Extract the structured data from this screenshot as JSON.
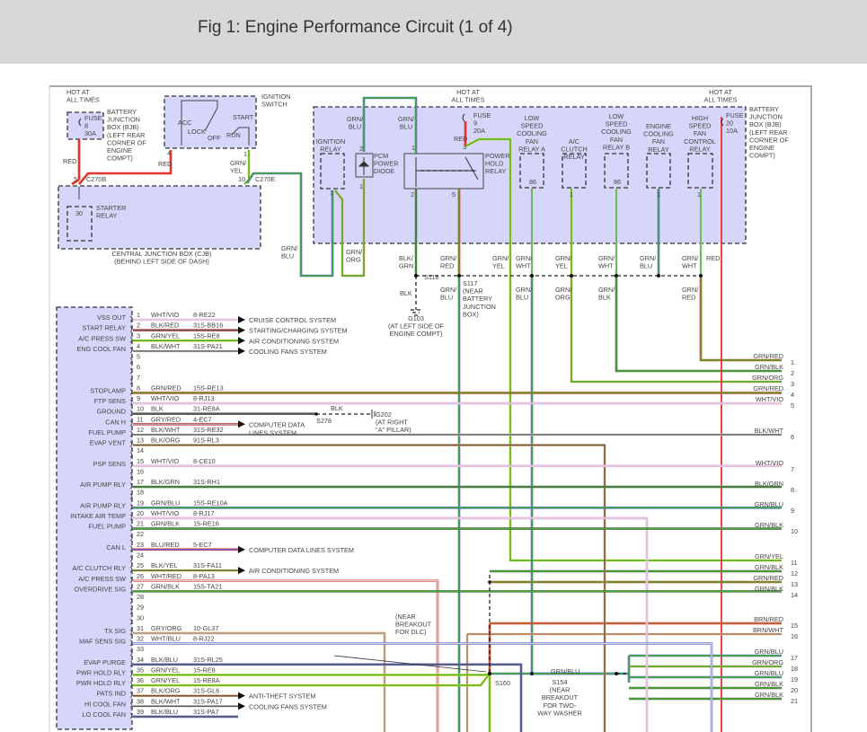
{
  "header": {
    "title": "Fig 1: Engine Performance Circuit (1 of 4)"
  },
  "wire_colors": {
    "GRN": "#3fae2a",
    "RED": "#e8322d",
    "BLK": "#5a5a5a",
    "WHT": "#d8d8d8",
    "VIO": "#ee9ee8",
    "YEL": "#e3dc2a",
    "BLU": "#5a6bd6",
    "ORG": "#e8a45a",
    "GRY": "#a0a0a0",
    "BRN": "#b5713a"
  },
  "labels": {
    "hot1": [
      "HOT AT",
      "ALL TIMES"
    ],
    "fuse8": [
      "FUSE",
      "8",
      "30A"
    ],
    "bjb_left": [
      "BATTERY",
      "JUNCTION",
      "BOX (BJB)",
      "(LEFT REAR",
      "CORNER OF",
      "ENGINE",
      "COMPT)"
    ],
    "ign_switch": [
      "IGNITION",
      "SWITCH"
    ],
    "ign_pos": {
      "acc": "ACC",
      "lock": "LOCK",
      "off": "OFF",
      "run": "RUN",
      "start": "START"
    },
    "pin4": "4",
    "pin1": "1",
    "red_a": "RED",
    "red_b": "RED",
    "grn_yel": [
      "GRN/",
      "YEL"
    ],
    "c270b_pin": "5",
    "c270b": "C270B",
    "c270e_pin": "10",
    "c270e": "C270E",
    "starter": [
      "STARTER",
      "RELAY"
    ],
    "starter_pin": "30",
    "cjb": [
      "CENTRAL JUNCTION BOX (CJB)",
      "(BEHIND LEFT SIDE OF DASH)"
    ],
    "grn_blu_a": [
      "GRN/",
      "BLU"
    ],
    "hot2": [
      "HOT AT",
      "ALL TIMES"
    ],
    "fuse9": [
      "FUSE",
      "9",
      "20A"
    ],
    "red_c": "RED",
    "ign_relay": [
      "IGNITION",
      "RELAY"
    ],
    "ign_relay_pin": "1",
    "diode": [
      "PCM",
      "POWER",
      "DIODE"
    ],
    "diode_pins": [
      "2",
      "1"
    ],
    "grn_blu_b": [
      "GRN/",
      "BLU"
    ],
    "grn_blu_c": [
      "GRN/",
      "BLU"
    ],
    "phr": [
      "POWER",
      "HOLD",
      "RELAY"
    ],
    "phr_pins": [
      "1",
      "2",
      "5",
      "3"
    ],
    "lsa": [
      "LOW",
      "SPEED",
      "COOLING",
      "FAN",
      "RELAY A"
    ],
    "lsa_pin": "86",
    "acc_relay": [
      "A/C",
      "CLUTCH",
      "RELAY"
    ],
    "acc_pin": "1",
    "lsb": [
      "LOW",
      "SPEED",
      "COOLING",
      "FAN",
      "RELAY B"
    ],
    "lsb_pin": "86",
    "ecf": [
      "ENGINE",
      "COOLING",
      "FAN",
      "RELAY"
    ],
    "ecf_pin": "1",
    "hsf": [
      "HIGH",
      "SPEED",
      "FAN",
      "CONTROL",
      "RELAY"
    ],
    "hsf_pin": "1",
    "hot3": [
      "HOT AT",
      "ALL TIMES"
    ],
    "fuse20": [
      "FUSE",
      "20",
      "10A"
    ],
    "bjb_right": [
      "BATTERY",
      "JUNCTION",
      "BOX (BJB)",
      "(LEFT REAR",
      "CORNER OF",
      "ENGINE",
      "COMPT)"
    ],
    "grn_blu_d": [
      "GRN/",
      "BLU"
    ],
    "grn_org_a": [
      "GRN/",
      "ORG"
    ],
    "blk_grn": [
      "BLK/",
      "GRN"
    ],
    "grn_red_a": [
      "GRN/",
      "RED"
    ],
    "grn_yel_b": [
      "GRN/",
      "YEL"
    ],
    "grn_wht_a": [
      "GRN/",
      "WHT"
    ],
    "grn_yel_c": [
      "GRN/",
      "YEL"
    ],
    "grn_wht_b": [
      "GRN/",
      "WHT"
    ],
    "grn_blu_e": [
      "GRN/",
      "BLU"
    ],
    "grn_wht_c": [
      "GRN/",
      "WHT"
    ],
    "red_d": "RED",
    "s118": "S118",
    "blk": "BLK",
    "g103": [
      "G103",
      "(AT LEFT SIDE OF",
      "ENGINE COMPT)"
    ],
    "s117": [
      "S117",
      "(NEAR",
      "BATTERY",
      "JUNCTION",
      "BOX)"
    ],
    "grn_blu_f": [
      "GRN/",
      "BLU"
    ],
    "grn_blu_g": [
      "GRN/",
      "BLU"
    ],
    "grn_org_b": [
      "GRN/",
      "ORG"
    ],
    "grn_blk_a": [
      "GRN/",
      "BLK"
    ],
    "grn_red_b": [
      "GRN/",
      "RED"
    ],
    "s278": "S278",
    "blk_b": "BLK",
    "g202": [
      "G202",
      "(AT RIGHT",
      "\"A\" PILLAR)"
    ],
    "dlc": [
      "(NEAR",
      "BREAKOUT",
      "FOR DLC)"
    ],
    "s160": "S160",
    "grn_blu_h": "GRN/BLU",
    "s154": [
      "S154",
      "(NEAR",
      "BREAKOUT",
      "FOR TWO-",
      "WAY WASHER"
    ]
  },
  "pcm_pins": [
    {
      "num": "1",
      "label": "VSS OUT",
      "wire": "WHT/VIO",
      "circuit": "8-RE22",
      "dest": "CRUISE CONTROL SYSTEM"
    },
    {
      "num": "2",
      "label": "START RELAY",
      "wire": "BLK/RED",
      "circuit": "31S-BB16",
      "dest": "STARTING/CHARGING SYSTEM"
    },
    {
      "num": "3",
      "label": "A/C PRESS SW",
      "wire": "GRN/YEL",
      "circuit": "15S-RE8",
      "dest": "AIR CONDITIONING SYSTEM"
    },
    {
      "num": "4",
      "label": "ENG COOL FAN",
      "wire": "BLK/WHT",
      "circuit": "31S-PA21",
      "dest": "COOLING FANS SYSTEM"
    },
    {
      "num": "5"
    },
    {
      "num": "6"
    },
    {
      "num": "7"
    },
    {
      "num": "8",
      "label": "STOPLAMP",
      "wire": "GRN/RED",
      "circuit": "15S-RE13"
    },
    {
      "num": "9",
      "label": "FTP SENS",
      "wire": "WHT/VIO",
      "circuit": "8-RJ13"
    },
    {
      "num": "10",
      "label": "GROUND",
      "wire": "BLK",
      "circuit": "31-RE8A"
    },
    {
      "num": "11",
      "label": "CAN H",
      "wire": "GRY/RED",
      "circuit": "4-EC7",
      "dest": "COMPUTER DATA|LINES SYSTEM"
    },
    {
      "num": "12",
      "label": "FUEL PUMP",
      "wire": "BLK/WHT",
      "circuit": "31S-RE32"
    },
    {
      "num": "13",
      "label": "EVAP VENT",
      "wire": "BLK/ORG",
      "circuit": "91S-RL3"
    },
    {
      "num": "14"
    },
    {
      "num": "15",
      "label": "PSP SENS",
      "wire": "WHT/VIO",
      "circuit": "8-CE10"
    },
    {
      "num": "16"
    },
    {
      "num": "17",
      "label": "AIR PUMP RLY",
      "wire": "BLK/GRN",
      "circuit": "31S-RH1"
    },
    {
      "num": "18"
    },
    {
      "num": "19",
      "label": "AIR PUMP RLY",
      "wire": "GRN/BLU",
      "circuit": "15S-RE10A"
    },
    {
      "num": "20",
      "label": "INTAKE AIR TEMP",
      "wire": "WHT/VIO",
      "circuit": "8-RJ17"
    },
    {
      "num": "21",
      "label": "FUEL PUMP",
      "wire": "GRN/BLK",
      "circuit": "15-RE16"
    },
    {
      "num": "22"
    },
    {
      "num": "23",
      "label": "CAN L",
      "wire": "BLU/RED",
      "circuit": "5-EC7",
      "dest": "COMPUTER DATA LINES SYSTEM"
    },
    {
      "num": "24"
    },
    {
      "num": "25",
      "label": "A/C CLUTCH RLY",
      "wire": "BLK/YEL",
      "circuit": "31S-FA11",
      "dest": "AIR CONDITIONING SYSTEM"
    },
    {
      "num": "26",
      "label": "A/C PRESS SW",
      "wire": "WHT/RED",
      "circuit": "8-PA13"
    },
    {
      "num": "27",
      "label": "OVERDRIVE SIG",
      "wire": "GRN/BLK",
      "circuit": "15S-TA21"
    },
    {
      "num": "28"
    },
    {
      "num": "29"
    },
    {
      "num": "30"
    },
    {
      "num": "31",
      "label": "TX SIG",
      "wire": "GRY/ORG",
      "circuit": "10-GL37"
    },
    {
      "num": "32",
      "label": "MAF SENS SIG",
      "wire": "WHT/BLU",
      "circuit": "8-RJ22"
    },
    {
      "num": "33"
    },
    {
      "num": "34",
      "label": "EVAP PURGE",
      "wire": "BLK/BLU",
      "circuit": "31S-RL25"
    },
    {
      "num": "35",
      "label": "PWR HOLD RLY",
      "wire": "GRN/YEL",
      "circuit": "15-RE8"
    },
    {
      "num": "36",
      "label": "PWR HOLD RLY",
      "wire": "GRN/YEL",
      "circuit": "15-RE8A"
    },
    {
      "num": "37",
      "label": "PATS IND",
      "wire": "BLK/ORG",
      "circuit": "31S-GL6",
      "dest": "ANTI-THEFT SYSTEM"
    },
    {
      "num": "38",
      "label": "HI COOL FAN",
      "wire": "BLK/WHT",
      "circuit": "31S-PA17",
      "dest": "COOLING FANS SYSTEM"
    },
    {
      "num": "39",
      "label": "LO COOL FAN",
      "wire": "BLK/BLU",
      "circuit": "31S-PA7"
    }
  ],
  "right_pins": [
    {
      "num": "1",
      "wire": "GRN/RED"
    },
    {
      "num": "2",
      "wire": "GRN/BLK"
    },
    {
      "num": "3",
      "wire": "GRN/ORG"
    },
    {
      "num": "4",
      "wire": "GRN/RED"
    },
    {
      "num": "5",
      "wire": "WHT/VIO"
    },
    {
      "num": "6",
      "wire": "BLK/WHT"
    },
    {
      "num": "7",
      "wire": "WHT/VIO"
    },
    {
      "num": "8",
      "wire": "BLK/GRN"
    },
    {
      "num": "9",
      "wire": "GRN/BLU"
    },
    {
      "num": "10",
      "wire": "GRN/BLK"
    },
    {
      "num": "11",
      "wire": "GRN/YEL"
    },
    {
      "num": "12",
      "wire": "GRN/BLK"
    },
    {
      "num": "13",
      "wire": "GRN/RED"
    },
    {
      "num": "14",
      "wire": "GRN/BLK"
    },
    {
      "num": "15",
      "wire": "BRN/RED"
    },
    {
      "num": "16",
      "wire": "BRN/WHT"
    },
    {
      "num": "17",
      "wire": "GRN/BLU"
    },
    {
      "num": "18",
      "wire": "GRN/ORG"
    },
    {
      "num": "19",
      "wire": "GRN/BLU"
    },
    {
      "num": "20",
      "wire": "GRN/BLK"
    },
    {
      "num": "21",
      "wire": "GRN/BLK"
    }
  ]
}
